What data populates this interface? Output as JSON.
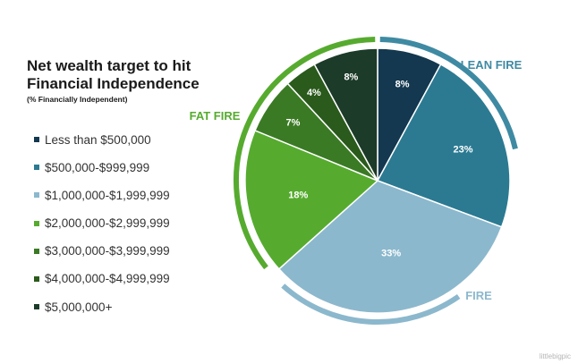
{
  "chart_data": {
    "type": "pie",
    "title": "Net wealth target to hit Financial Independence",
    "title_lines": [
      "Net wealth target to hit",
      "Financial Independence"
    ],
    "subtitle": "(% Financially Independent)",
    "legend_placement": "left",
    "categories": [
      "Less than $500,000",
      "$500,000-$999,999",
      "$1,000,000-$1,999,999",
      "$2,000,000-$2,999,999",
      "$3,000,000-$3,999,999",
      "$4,000,000-$4,999,999",
      "$5,000,000+"
    ],
    "values": [
      8,
      23,
      33,
      18,
      7,
      4,
      8
    ],
    "data_labels": [
      "8%",
      "23%",
      "33%",
      "18%",
      "7%",
      "4%",
      "8%"
    ],
    "colors": [
      "#13384f",
      "#2b7a92",
      "#8cb8cd",
      "#56ab2f",
      "#3b7a24",
      "#2a5a1c",
      "#1c3b28"
    ],
    "groups": [
      {
        "label": "LEAN FIRE",
        "color": "#3f8aa3"
      },
      {
        "label": "FIRE",
        "color": "#8cb8cd"
      },
      {
        "label": "FAT FIRE",
        "color": "#56ab2f"
      }
    ]
  },
  "watermark": "littlebigpic"
}
